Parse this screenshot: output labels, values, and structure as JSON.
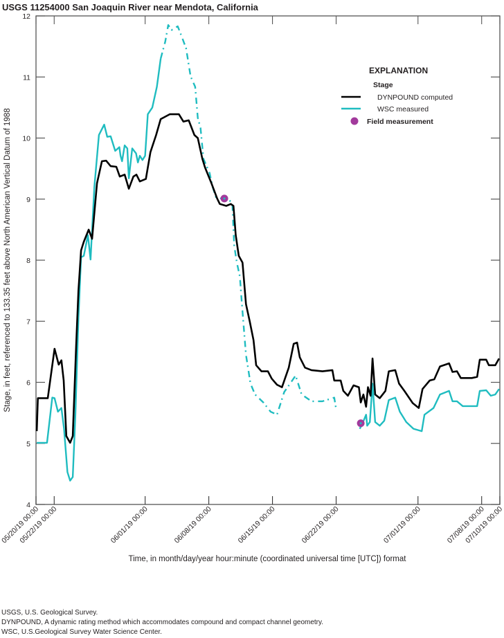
{
  "chart_data": {
    "type": "line",
    "title": "USGS 11254000 San Joaquin River near Mendota, California",
    "xlabel": "Time, in month/day/year hour:minute (coordinated universal time [UTC]) format",
    "ylabel": "Stage, in feet, referenced to 133.35 feet above North American Vertical Datum of 1988",
    "xlim": [
      "2019-05-20T00:00",
      "2019-07-10T00:00"
    ],
    "ylim": [
      4,
      12
    ],
    "yticks": [
      "4",
      "5",
      "6",
      "7",
      "8",
      "9",
      "10",
      "11",
      "12"
    ],
    "xticks": [
      {
        "t": "2019-05-20T00:00",
        "label": "05/20/19 00:00"
      },
      {
        "t": "2019-05-22T00:00",
        "label": "05/22/19 00:00"
      },
      {
        "t": "2019-06-01T00:00",
        "label": "06/01/19 00:00"
      },
      {
        "t": "2019-06-08T00:00",
        "label": "06/08/19 00:00"
      },
      {
        "t": "2019-06-15T00:00",
        "label": "06/15/19 00:00"
      },
      {
        "t": "2019-06-22T00:00",
        "label": "06/22/19 00:00"
      },
      {
        "t": "2019-07-01T00:00",
        "label": "07/01/19 00:00"
      },
      {
        "t": "2019-07-08T00:00",
        "label": "07/08/19 00:00"
      },
      {
        "t": "2019-07-10T00:00",
        "label": "07/10/19 00:00"
      }
    ],
    "grid": false,
    "legend": {
      "title": "EXPLANATION",
      "subtitle": "Stage",
      "placement": "top-right",
      "entries": [
        "DYNPOUND computed",
        "WSC measured",
        "Field measurement"
      ]
    },
    "series": [
      {
        "name": "DYNPOUND computed",
        "color": "#000000",
        "points": [
          [
            "2019-05-20T02:00",
            5.2
          ],
          [
            "2019-05-20T05:00",
            5.74
          ],
          [
            "2019-05-21T07:00",
            5.74
          ],
          [
            "2019-05-22T01:00",
            6.55
          ],
          [
            "2019-05-22T12:00",
            6.29
          ],
          [
            "2019-05-22T19:00",
            6.36
          ],
          [
            "2019-05-23T01:00",
            6.03
          ],
          [
            "2019-05-23T08:00",
            5.12
          ],
          [
            "2019-05-23T18:00",
            5.01
          ],
          [
            "2019-05-24T01:00",
            5.12
          ],
          [
            "2019-05-24T10:00",
            6.6
          ],
          [
            "2019-05-24T16:00",
            7.5
          ],
          [
            "2019-05-24T23:00",
            8.16
          ],
          [
            "2019-05-25T06:00",
            8.3
          ],
          [
            "2019-05-25T19:00",
            8.5
          ],
          [
            "2019-05-26T04:00",
            8.35
          ],
          [
            "2019-05-26T17:00",
            9.26
          ],
          [
            "2019-05-27T06:00",
            9.62
          ],
          [
            "2019-05-27T17:00",
            9.63
          ],
          [
            "2019-05-28T05:00",
            9.54
          ],
          [
            "2019-05-28T20:00",
            9.53
          ],
          [
            "2019-05-29T05:00",
            9.37
          ],
          [
            "2019-05-29T18:00",
            9.4
          ],
          [
            "2019-05-30T05:00",
            9.17
          ],
          [
            "2019-05-30T17:00",
            9.37
          ],
          [
            "2019-05-31T01:00",
            9.4
          ],
          [
            "2019-05-31T10:00",
            9.29
          ],
          [
            "2019-06-01T02:00",
            9.33
          ],
          [
            "2019-06-01T14:00",
            9.77
          ],
          [
            "2019-06-02T05:00",
            10.05
          ],
          [
            "2019-06-02T17:00",
            10.31
          ],
          [
            "2019-06-03T17:00",
            10.39
          ],
          [
            "2019-06-04T17:00",
            10.39
          ],
          [
            "2019-06-05T05:00",
            10.27
          ],
          [
            "2019-06-05T19:00",
            10.29
          ],
          [
            "2019-06-06T10:00",
            10.05
          ],
          [
            "2019-06-06T19:00",
            10.0
          ],
          [
            "2019-06-07T07:00",
            9.66
          ],
          [
            "2019-06-07T14:00",
            9.52
          ],
          [
            "2019-06-08T07:00",
            9.26
          ],
          [
            "2019-06-08T22:00",
            9.01
          ],
          [
            "2019-06-09T05:00",
            8.92
          ],
          [
            "2019-06-09T22:00",
            8.89
          ],
          [
            "2019-06-10T10:00",
            8.92
          ],
          [
            "2019-06-10T17:00",
            8.89
          ],
          [
            "2019-06-10T23:00",
            8.41
          ],
          [
            "2019-06-11T07:00",
            8.07
          ],
          [
            "2019-06-11T17:00",
            7.96
          ],
          [
            "2019-06-12T02:00",
            7.28
          ],
          [
            "2019-06-12T12:00",
            7.0
          ],
          [
            "2019-06-12T22:00",
            6.69
          ],
          [
            "2019-06-13T05:00",
            6.28
          ],
          [
            "2019-06-13T19:00",
            6.18
          ],
          [
            "2019-06-14T12:00",
            6.18
          ],
          [
            "2019-06-14T22:00",
            6.06
          ],
          [
            "2019-06-15T12:00",
            5.96
          ],
          [
            "2019-06-16T01:00",
            5.92
          ],
          [
            "2019-06-16T19:00",
            6.24
          ],
          [
            "2019-06-17T08:00",
            6.63
          ],
          [
            "2019-06-17T17:00",
            6.65
          ],
          [
            "2019-06-18T00:00",
            6.41
          ],
          [
            "2019-06-18T14:00",
            6.24
          ],
          [
            "2019-06-19T07:00",
            6.2
          ],
          [
            "2019-06-20T12:00",
            6.18
          ],
          [
            "2019-06-21T14:00",
            6.2
          ],
          [
            "2019-06-21T19:00",
            6.03
          ],
          [
            "2019-06-22T12:00",
            6.03
          ],
          [
            "2019-06-22T19:00",
            5.86
          ],
          [
            "2019-06-23T07:00",
            5.78
          ],
          [
            "2019-06-23T22:00",
            5.95
          ],
          [
            "2019-06-24T12:00",
            5.92
          ],
          [
            "2019-06-24T17:00",
            5.67
          ],
          [
            "2019-06-25T00:00",
            5.8
          ],
          [
            "2019-06-25T07:00",
            5.6
          ],
          [
            "2019-06-25T12:00",
            5.92
          ],
          [
            "2019-06-25T19:00",
            5.78
          ],
          [
            "2019-06-26T00:00",
            6.39
          ],
          [
            "2019-06-26T07:00",
            5.8
          ],
          [
            "2019-06-26T19:00",
            5.74
          ],
          [
            "2019-06-27T10:00",
            5.86
          ],
          [
            "2019-06-27T19:00",
            6.18
          ],
          [
            "2019-06-28T12:00",
            6.2
          ],
          [
            "2019-06-28T22:00",
            5.98
          ],
          [
            "2019-06-29T12:00",
            5.86
          ],
          [
            "2019-06-30T10:00",
            5.66
          ],
          [
            "2019-07-01T02:00",
            5.58
          ],
          [
            "2019-07-01T12:00",
            5.89
          ],
          [
            "2019-07-02T07:00",
            6.03
          ],
          [
            "2019-07-02T19:00",
            6.05
          ],
          [
            "2019-07-03T10:00",
            6.26
          ],
          [
            "2019-07-04T10:00",
            6.31
          ],
          [
            "2019-07-04T19:00",
            6.17
          ],
          [
            "2019-07-05T07:00",
            6.18
          ],
          [
            "2019-07-05T17:00",
            6.07
          ],
          [
            "2019-07-06T22:00",
            6.07
          ],
          [
            "2019-07-07T12:00",
            6.09
          ],
          [
            "2019-07-07T19:00",
            6.37
          ],
          [
            "2019-07-08T12:00",
            6.37
          ],
          [
            "2019-07-08T19:00",
            6.28
          ],
          [
            "2019-07-09T12:00",
            6.28
          ],
          [
            "2019-07-09T22:00",
            6.39
          ]
        ]
      },
      {
        "name": "WSC measured",
        "color": "#1fbcc0",
        "points": [
          [
            "2019-05-20T02:00",
            5.01
          ],
          [
            "2019-05-21T05:00",
            5.01
          ],
          [
            "2019-05-21T19:00",
            5.75
          ],
          [
            "2019-05-22T01:00",
            5.74
          ],
          [
            "2019-05-22T10:00",
            5.52
          ],
          [
            "2019-05-22T19:00",
            5.58
          ],
          [
            "2019-05-23T02:00",
            5.24
          ],
          [
            "2019-05-23T11:00",
            4.53
          ],
          [
            "2019-05-23T18:00",
            4.39
          ],
          [
            "2019-05-24T01:00",
            4.45
          ],
          [
            "2019-05-24T08:00",
            5.47
          ],
          [
            "2019-05-24T16:00",
            7.05
          ],
          [
            "2019-05-24T23:00",
            8.05
          ],
          [
            "2019-05-25T06:00",
            8.07
          ],
          [
            "2019-05-25T17:00",
            8.41
          ],
          [
            "2019-05-26T00:00",
            8.01
          ],
          [
            "2019-05-26T10:00",
            9.2
          ],
          [
            "2019-05-26T22:00",
            10.05
          ],
          [
            "2019-05-27T12:00",
            10.22
          ],
          [
            "2019-05-27T20:00",
            10.02
          ],
          [
            "2019-05-28T05:00",
            10.03
          ],
          [
            "2019-05-28T17:00",
            9.79
          ],
          [
            "2019-05-29T04:00",
            9.85
          ],
          [
            "2019-05-29T07:00",
            9.71
          ],
          [
            "2019-05-29T11:00",
            9.62
          ],
          [
            "2019-05-29T18:00",
            9.88
          ],
          [
            "2019-05-30T01:00",
            9.83
          ],
          [
            "2019-05-30T05:00",
            9.34
          ],
          [
            "2019-05-30T14:00",
            9.83
          ],
          [
            "2019-05-31T00:00",
            9.75
          ],
          [
            "2019-05-31T05:00",
            9.6
          ],
          [
            "2019-05-31T10:00",
            9.71
          ],
          [
            "2019-05-31T17:00",
            9.64
          ],
          [
            "2019-06-01T00:00",
            9.71
          ],
          [
            "2019-06-01T07:00",
            10.39
          ],
          [
            "2019-06-01T19:00",
            10.5
          ],
          [
            "2019-06-02T07:00",
            10.84
          ],
          [
            "2019-06-02T17:00",
            11.3
          ],
          [
            "2019-06-03T05:00",
            11.58
          ],
          [
            "2019-06-03T13:00",
            11.85
          ],
          [
            "2019-06-03T22:00",
            11.77
          ],
          [
            "2019-06-04T14:00",
            11.83
          ],
          [
            "2019-06-05T00:00",
            11.67
          ],
          [
            "2019-06-05T12:00",
            11.47
          ],
          [
            "2019-06-06T00:00",
            11.01
          ],
          [
            "2019-06-06T12:00",
            10.84
          ],
          [
            "2019-06-06T19:00",
            10.33
          ],
          [
            "2019-06-07T02:00",
            10.17
          ],
          [
            "2019-06-07T10:00",
            9.66
          ],
          [
            "2019-06-08T02:00",
            9.43
          ],
          [
            "2019-06-08T10:00",
            9.2
          ],
          [
            "2019-06-08T19:00",
            9.03
          ],
          [
            "2019-06-10T05:00",
            8.98
          ],
          [
            "2019-06-10T14:00",
            8.95
          ],
          [
            "2019-06-10T19:00",
            8.24
          ],
          [
            "2019-06-11T02:00",
            7.96
          ],
          [
            "2019-06-11T10:00",
            7.73
          ],
          [
            "2019-06-11T14:00",
            7.39
          ],
          [
            "2019-06-11T19:00",
            7.0
          ],
          [
            "2019-06-12T02:00",
            6.45
          ],
          [
            "2019-06-12T14:00",
            5.98
          ],
          [
            "2019-06-13T02:00",
            5.8
          ],
          [
            "2019-06-14T00:00",
            5.67
          ],
          [
            "2019-06-14T19:00",
            5.52
          ],
          [
            "2019-06-15T12:00",
            5.47
          ],
          [
            "2019-06-16T07:00",
            5.84
          ],
          [
            "2019-06-17T13:00",
            6.11
          ],
          [
            "2019-06-18T05:00",
            5.8
          ],
          [
            "2019-06-19T07:00",
            5.69
          ],
          [
            "2019-06-20T12:00",
            5.69
          ],
          [
            "2019-06-21T19:00",
            5.75
          ],
          [
            "2019-06-22T00:00",
            5.56
          ],
          null,
          [
            "2019-06-24T14:00",
            5.24
          ],
          [
            "2019-06-24T19:00",
            5.29
          ],
          [
            "2019-06-25T07:00",
            5.47
          ],
          [
            "2019-06-25T10:00",
            5.29
          ],
          [
            "2019-06-25T17:00",
            5.35
          ],
          [
            "2019-06-26T00:00",
            5.98
          ],
          [
            "2019-06-26T07:00",
            5.35
          ],
          [
            "2019-06-26T19:00",
            5.29
          ],
          [
            "2019-06-27T07:00",
            5.37
          ],
          [
            "2019-06-27T19:00",
            5.71
          ],
          [
            "2019-06-28T12:00",
            5.75
          ],
          [
            "2019-06-29T00:00",
            5.52
          ],
          [
            "2019-06-29T17:00",
            5.35
          ],
          [
            "2019-06-30T12:00",
            5.24
          ],
          [
            "2019-07-01T10:00",
            5.2
          ],
          [
            "2019-07-01T17:00",
            5.47
          ],
          [
            "2019-07-02T17:00",
            5.58
          ],
          [
            "2019-07-03T10:00",
            5.8
          ],
          [
            "2019-07-04T10:00",
            5.86
          ],
          [
            "2019-07-04T19:00",
            5.69
          ],
          [
            "2019-07-05T07:00",
            5.69
          ],
          [
            "2019-07-05T22:00",
            5.61
          ],
          [
            "2019-07-07T12:00",
            5.61
          ],
          [
            "2019-07-07T19:00",
            5.86
          ],
          [
            "2019-07-08T12:00",
            5.87
          ],
          [
            "2019-07-09T00:00",
            5.78
          ],
          [
            "2019-07-09T12:00",
            5.8
          ],
          [
            "2019-07-09T22:00",
            5.89
          ]
        ]
      }
    ],
    "field_measurements": {
      "name": "Field measurement",
      "color": "#a23a9c",
      "points": [
        [
          "2019-06-09T17:00",
          9.01
        ],
        [
          "2019-06-24T17:00",
          5.33
        ]
      ]
    }
  },
  "footnotes": [
    "USGS, U.S. Geological Survey.",
    "DYNPOUND, A dynamic rating method which accommodates compound and compact channel geometry.",
    "WSC, U.S.Geological Survey Water Science Center."
  ]
}
